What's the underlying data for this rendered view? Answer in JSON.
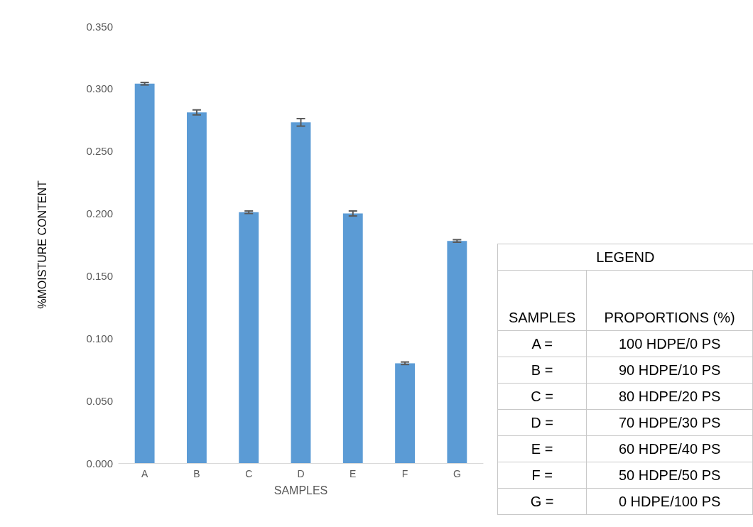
{
  "chart_data": {
    "type": "bar",
    "xlabel": "SAMPLES",
    "ylabel": "%MOISTURE CONTENT",
    "categories": [
      "A",
      "B",
      "C",
      "D",
      "E",
      "F",
      "G"
    ],
    "values": [
      0.304,
      0.281,
      0.201,
      0.273,
      0.2,
      0.08,
      0.178
    ],
    "errors": [
      0.001,
      0.002,
      0.001,
      0.003,
      0.002,
      0.001,
      0.001
    ],
    "color": "#5b9bd5",
    "ylim": [
      0,
      0.35
    ],
    "yticks": [
      {
        "value": 0,
        "label": "0.000"
      },
      {
        "value": 0.05,
        "label": "0.050"
      },
      {
        "value": 0.1,
        "label": "0.100"
      },
      {
        "value": 0.15,
        "label": "0.150"
      },
      {
        "value": 0.2,
        "label": "0.200"
      },
      {
        "value": 0.25,
        "label": "0.250"
      },
      {
        "value": 0.3,
        "label": "0.300"
      },
      {
        "value": 0.35,
        "label": "0.350"
      }
    ],
    "annotations": [
      "LEGEND",
      "SAMPLES",
      "PROPORTIONS (%)",
      "A =",
      "100 HDPE/0 PS",
      "B =",
      "90 HDPE/10 PS",
      "C =",
      "80 HDPE/20 PS",
      "D =",
      "70 HDPE/30 PS",
      "E =",
      "60 HDPE/40 PS",
      "F =",
      "50 HDPE/50 PS",
      "G =",
      "0 HDPE/100 PS"
    ]
  }
}
